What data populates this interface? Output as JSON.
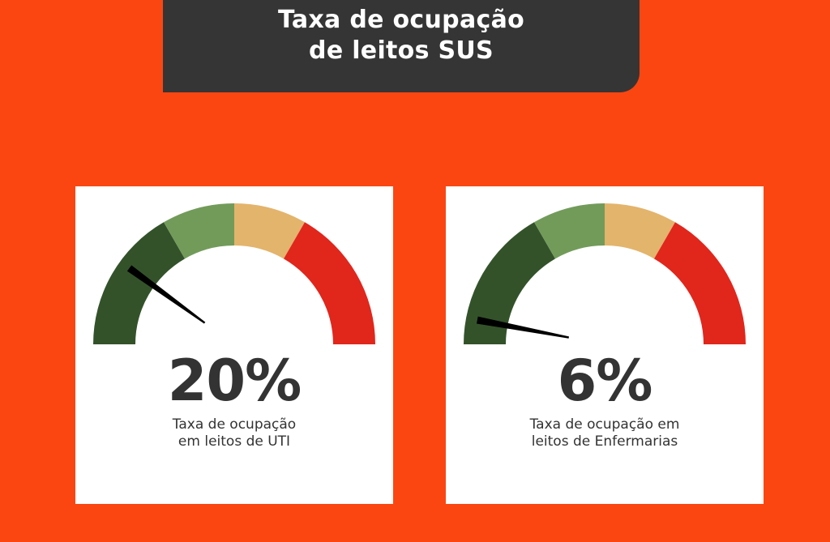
{
  "title": {
    "line1": "Taxa de ocupação",
    "line2": "de leitos SUS"
  },
  "colors": {
    "background": "#fb4612",
    "title_box": "#353535",
    "zone_dark_green": "#33522a",
    "zone_light_green": "#729b5a",
    "zone_yellow": "#e3b46b",
    "zone_red": "#e1261c",
    "needle": "#000000"
  },
  "gauges": [
    {
      "value_label": "20%",
      "value_fraction": 0.2,
      "caption_line1": "Taxa de ocupação",
      "caption_line2": "em leitos de UTI"
    },
    {
      "value_label": "6%",
      "value_fraction": 0.06,
      "caption_line1": "Taxa de ocupação em",
      "caption_line2": "leitos de Enfermarias"
    }
  ]
}
